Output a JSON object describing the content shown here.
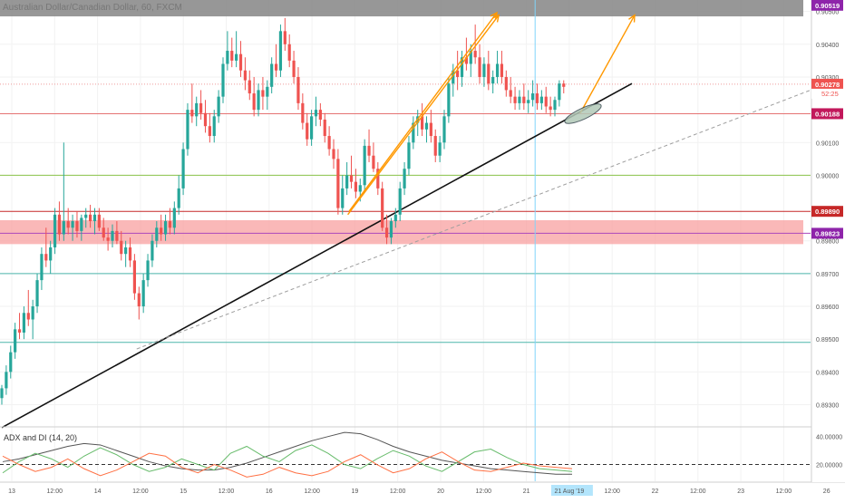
{
  "chart_title": "Australian Dollar/Canadian Dollar, 60, FXCM",
  "watermark": "",
  "colors": {
    "up": "#26a69a",
    "down": "#ef5350",
    "trend": "#111111",
    "orange": "#ff9800",
    "red_level": "#c62828",
    "green_level": "#8bc34a",
    "teal_level": "#4db6ac",
    "purple_level": "#9c27b0",
    "zone": "#f8a0a0",
    "band": "#9e9e9e",
    "adx": "#555555",
    "di_plus": "#66bb6a",
    "di_minus": "#ff7043"
  },
  "chart_data": [
    {
      "type": "candlestick",
      "title": "Australian Dollar/Canadian Dollar, 60, FXCM",
      "ylim": [
        0.89235,
        0.90535
      ],
      "y_ticks": [
        "0.89300",
        "0.89400",
        "0.89500",
        "0.89600",
        "0.89700",
        "0.89800",
        "0.90000",
        "0.90100",
        "0.90300",
        "0.90400",
        "0.90500"
      ],
      "price_labels": [
        {
          "value": 0.90519,
          "text": "0.90519",
          "color": "#8e24aa"
        },
        {
          "value": 0.90278,
          "text": "0.90278",
          "color": "#ef5350"
        },
        {
          "value": 0.90188,
          "text": "0.90188",
          "color": "#c2185b"
        },
        {
          "value": 0.8989,
          "text": "0.89890",
          "color": "#c62828"
        },
        {
          "value": 0.89823,
          "text": "0.89823",
          "color": "#8e24aa"
        }
      ],
      "countdown": "52:25",
      "horizontal_levels": [
        {
          "value": 0.90188,
          "color": "#e57373"
        },
        {
          "value": 0.9,
          "color": "#8bc34a"
        },
        {
          "value": 0.8989,
          "color": "#c62828"
        },
        {
          "value": 0.89823,
          "color": "#ab47bc"
        },
        {
          "value": 0.897,
          "color": "#4db6ac"
        },
        {
          "value": 0.8949,
          "color": "#4db6ac"
        }
      ],
      "zones": [
        {
          "top": 0.90535,
          "bottom": 0.90485,
          "color": "#8c8c8c"
        },
        {
          "top": 0.89863,
          "bottom": 0.8979,
          "color": "#f8a0a0"
        }
      ],
      "x_labels": [
        "13",
        "12:00",
        "14",
        "12:00",
        "15",
        "12:00",
        "16",
        "12:00",
        "19",
        "12:00",
        "20",
        "12:00",
        "21",
        "21 Aug '19",
        "12:00",
        "22",
        "12:00",
        "23",
        "12:00",
        "26"
      ],
      "highlight_x_label": "21 Aug '19",
      "candles": [
        [
          0.8932,
          0.8936,
          0.893,
          0.8935
        ],
        [
          0.8935,
          0.8942,
          0.8933,
          0.894
        ],
        [
          0.894,
          0.8948,
          0.8938,
          0.8946
        ],
        [
          0.8946,
          0.8955,
          0.8944,
          0.8953
        ],
        [
          0.8953,
          0.8958,
          0.895,
          0.8952
        ],
        [
          0.8952,
          0.896,
          0.895,
          0.8958
        ],
        [
          0.8958,
          0.8965,
          0.8954,
          0.8956
        ],
        [
          0.8956,
          0.8962,
          0.895,
          0.896
        ],
        [
          0.896,
          0.897,
          0.8958,
          0.8968
        ],
        [
          0.8968,
          0.8978,
          0.8965,
          0.8976
        ],
        [
          0.8976,
          0.8984,
          0.8972,
          0.8974
        ],
        [
          0.8974,
          0.898,
          0.897,
          0.8978
        ],
        [
          0.8978,
          0.899,
          0.8976,
          0.8988
        ],
        [
          0.8988,
          0.8992,
          0.898,
          0.8982
        ],
        [
          0.8982,
          0.901,
          0.898,
          0.8986
        ],
        [
          0.8986,
          0.899,
          0.8982,
          0.8984
        ],
        [
          0.8984,
          0.8988,
          0.898,
          0.8986
        ],
        [
          0.8986,
          0.8989,
          0.8981,
          0.8983
        ],
        [
          0.8983,
          0.8988,
          0.898,
          0.8987
        ],
        [
          0.8987,
          0.899,
          0.8984,
          0.8988
        ],
        [
          0.8988,
          0.8991,
          0.8984,
          0.8986
        ],
        [
          0.8986,
          0.899,
          0.8982,
          0.8988
        ],
        [
          0.8988,
          0.899,
          0.8983,
          0.8984
        ],
        [
          0.8984,
          0.8987,
          0.898,
          0.8981
        ],
        [
          0.8981,
          0.8984,
          0.8977,
          0.898
        ],
        [
          0.898,
          0.8985,
          0.8978,
          0.8983
        ],
        [
          0.8983,
          0.8986,
          0.8979,
          0.898
        ],
        [
          0.898,
          0.8983,
          0.8974,
          0.8976
        ],
        [
          0.8976,
          0.898,
          0.8972,
          0.8978
        ],
        [
          0.8978,
          0.8981,
          0.8972,
          0.8974
        ],
        [
          0.8974,
          0.8976,
          0.8962,
          0.8964
        ],
        [
          0.8964,
          0.8966,
          0.8956,
          0.896
        ],
        [
          0.896,
          0.897,
          0.8958,
          0.8968
        ],
        [
          0.8968,
          0.8976,
          0.8966,
          0.8974
        ],
        [
          0.8974,
          0.8982,
          0.8972,
          0.898
        ],
        [
          0.898,
          0.8986,
          0.8978,
          0.8984
        ],
        [
          0.8984,
          0.8988,
          0.898,
          0.8982
        ],
        [
          0.8982,
          0.8988,
          0.898,
          0.8986
        ],
        [
          0.8986,
          0.899,
          0.8982,
          0.8984
        ],
        [
          0.8984,
          0.8992,
          0.8982,
          0.899
        ],
        [
          0.899,
          0.9,
          0.8988,
          0.8996
        ],
        [
          0.8996,
          0.901,
          0.8994,
          0.9008
        ],
        [
          0.9008,
          0.9022,
          0.9006,
          0.902
        ],
        [
          0.902,
          0.9028,
          0.9016,
          0.9018
        ],
        [
          0.9018,
          0.9024,
          0.9015,
          0.9022
        ],
        [
          0.9022,
          0.9026,
          0.9017,
          0.9019
        ],
        [
          0.9019,
          0.9023,
          0.9013,
          0.9015
        ],
        [
          0.9015,
          0.9019,
          0.901,
          0.9012
        ],
        [
          0.9012,
          0.902,
          0.901,
          0.9018
        ],
        [
          0.9018,
          0.9026,
          0.9016,
          0.9024
        ],
        [
          0.9024,
          0.9036,
          0.9022,
          0.9034
        ],
        [
          0.9034,
          0.9044,
          0.9032,
          0.9038
        ],
        [
          0.9038,
          0.9042,
          0.9033,
          0.9035
        ],
        [
          0.9035,
          0.9044,
          0.9033,
          0.9037
        ],
        [
          0.9037,
          0.9041,
          0.903,
          0.9032
        ],
        [
          0.9032,
          0.9036,
          0.9026,
          0.9029
        ],
        [
          0.9029,
          0.9032,
          0.9023,
          0.9025
        ],
        [
          0.9025,
          0.903,
          0.9018,
          0.902
        ],
        [
          0.902,
          0.9028,
          0.9018,
          0.9026
        ],
        [
          0.9026,
          0.903,
          0.902,
          0.9024
        ],
        [
          0.9024,
          0.9029,
          0.902,
          0.9027
        ],
        [
          0.9027,
          0.9036,
          0.9025,
          0.9034
        ],
        [
          0.9034,
          0.904,
          0.903,
          0.9032
        ],
        [
          0.9032,
          0.9046,
          0.903,
          0.9044
        ],
        [
          0.9044,
          0.9048,
          0.9038,
          0.904
        ],
        [
          0.904,
          0.9043,
          0.9033,
          0.9035
        ],
        [
          0.9035,
          0.9038,
          0.9028,
          0.903
        ],
        [
          0.903,
          0.9033,
          0.902,
          0.9022
        ],
        [
          0.9022,
          0.9025,
          0.9014,
          0.9016
        ],
        [
          0.9016,
          0.9019,
          0.9009,
          0.9011
        ],
        [
          0.9011,
          0.902,
          0.9009,
          0.9018
        ],
        [
          0.9018,
          0.9024,
          0.9015,
          0.902
        ],
        [
          0.902,
          0.9022,
          0.9015,
          0.9017
        ],
        [
          0.9017,
          0.9019,
          0.901,
          0.9012
        ],
        [
          0.9012,
          0.9015,
          0.9006,
          0.9008
        ],
        [
          0.9008,
          0.9011,
          0.9002,
          0.9005
        ],
        [
          0.9005,
          0.9008,
          0.8988,
          0.899
        ],
        [
          0.899,
          0.9,
          0.8988,
          0.8996
        ],
        [
          0.8996,
          0.9004,
          0.8994,
          0.9
        ],
        [
          0.9,
          0.9006,
          0.8996,
          0.8998
        ],
        [
          0.8998,
          0.9002,
          0.8993,
          0.8995
        ],
        [
          0.8995,
          0.8999,
          0.8992,
          0.8997
        ],
        [
          0.8997,
          0.9011,
          0.8995,
          0.9009
        ],
        [
          0.9009,
          0.9014,
          0.9004,
          0.9006
        ],
        [
          0.9006,
          0.901,
          0.9001,
          0.9002
        ],
        [
          0.9002,
          0.9004,
          0.8994,
          0.8996
        ],
        [
          0.8996,
          0.8998,
          0.8983,
          0.8984
        ],
        [
          0.8984,
          0.8988,
          0.8979,
          0.8981
        ],
        [
          0.8981,
          0.8987,
          0.8979,
          0.8986
        ],
        [
          0.8986,
          0.899,
          0.8984,
          0.8988
        ],
        [
          0.8988,
          0.8998,
          0.8986,
          0.8996
        ],
        [
          0.8996,
          0.9004,
          0.8994,
          0.9002
        ],
        [
          0.9002,
          0.9012,
          0.9,
          0.901
        ],
        [
          0.901,
          0.9018,
          0.9008,
          0.9016
        ],
        [
          0.9016,
          0.902,
          0.9012,
          0.9018
        ],
        [
          0.9018,
          0.9022,
          0.9012,
          0.9014
        ],
        [
          0.9014,
          0.9018,
          0.901,
          0.9016
        ],
        [
          0.9016,
          0.902,
          0.901,
          0.9012
        ],
        [
          0.9012,
          0.9014,
          0.9004,
          0.9006
        ],
        [
          0.9006,
          0.9012,
          0.9004,
          0.901
        ],
        [
          0.901,
          0.902,
          0.9008,
          0.9018
        ],
        [
          0.9018,
          0.903,
          0.9016,
          0.9028
        ],
        [
          0.9028,
          0.9034,
          0.9024,
          0.9032
        ],
        [
          0.9032,
          0.9038,
          0.9026,
          0.903
        ],
        [
          0.903,
          0.9038,
          0.9027,
          0.9036
        ],
        [
          0.9036,
          0.9042,
          0.9032,
          0.9034
        ],
        [
          0.9034,
          0.904,
          0.903,
          0.9038
        ],
        [
          0.9038,
          0.9046,
          0.9034,
          0.9036
        ],
        [
          0.9036,
          0.904,
          0.9028,
          0.903
        ],
        [
          0.903,
          0.9036,
          0.9027,
          0.9034
        ],
        [
          0.9034,
          0.9038,
          0.9026,
          0.9028
        ],
        [
          0.9028,
          0.9032,
          0.9025,
          0.903
        ],
        [
          0.903,
          0.9038,
          0.9028,
          0.9034
        ],
        [
          0.9034,
          0.9038,
          0.9028,
          0.903
        ],
        [
          0.903,
          0.9032,
          0.9024,
          0.9026
        ],
        [
          0.9026,
          0.903,
          0.9022,
          0.9024
        ],
        [
          0.9024,
          0.9027,
          0.902,
          0.9022
        ],
        [
          0.9022,
          0.9026,
          0.902,
          0.9024
        ],
        [
          0.9024,
          0.9028,
          0.902,
          0.9022
        ],
        [
          0.9022,
          0.9026,
          0.9019,
          0.9023
        ],
        [
          0.9023,
          0.9029,
          0.9021,
          0.9025
        ],
        [
          0.9025,
          0.9028,
          0.902,
          0.9022
        ],
        [
          0.9022,
          0.9026,
          0.902,
          0.9024
        ],
        [
          0.9024,
          0.9027,
          0.9019,
          0.9021
        ],
        [
          0.9021,
          0.9024,
          0.9018,
          0.902
        ],
        [
          0.902,
          0.9024,
          0.9018,
          0.9023
        ],
        [
          0.9023,
          0.9029,
          0.9021,
          0.9028
        ],
        [
          0.9028,
          0.9029,
          0.9025,
          0.9027
        ]
      ],
      "drawings": {
        "black_trendline": [
          [
            0,
            0.8923
          ],
          [
            125,
            0.9028
          ]
        ],
        "dashed_trendline": [
          [
            27,
            0.8947
          ],
          [
            186,
            0.9026
          ]
        ],
        "orange_arrows": [
          [
            [
              70,
              0.8988
            ],
            [
              99,
              0.905
            ]
          ],
          [
            [
              95,
              0.902
            ],
            [
              99,
              0.905
            ]
          ],
          [
            [
              116,
              0.9019
            ],
            [
              126,
              0.905
            ]
          ]
        ],
        "ellipse_center": [
          115,
          0.90188
        ],
        "vertical_marker_index": 115
      }
    },
    {
      "type": "line",
      "title": "ADX and DI (14, 20)",
      "ylim": [
        8,
        45
      ],
      "y_ticks": [
        "40.00000",
        "20.00000"
      ],
      "dashed_level": 20,
      "series": [
        {
          "name": "ADX",
          "values": [
            22,
            24,
            27,
            30,
            33,
            35,
            34,
            30,
            26,
            22,
            19,
            17,
            16,
            16,
            18,
            21,
            25,
            29,
            33,
            37,
            40,
            43,
            42,
            38,
            33,
            29,
            26,
            23,
            21,
            19,
            17,
            16,
            15,
            14,
            13,
            13
          ]
        },
        {
          "name": "+DI",
          "values": [
            14,
            22,
            28,
            24,
            18,
            26,
            32,
            27,
            20,
            15,
            18,
            24,
            20,
            16,
            28,
            33,
            26,
            22,
            30,
            34,
            28,
            20,
            17,
            24,
            30,
            26,
            19,
            15,
            22,
            29,
            31,
            25,
            20,
            17,
            16,
            15
          ]
        },
        {
          "name": "-DI",
          "values": [
            26,
            20,
            15,
            18,
            24,
            17,
            12,
            16,
            22,
            28,
            26,
            18,
            14,
            20,
            16,
            11,
            13,
            18,
            14,
            12,
            15,
            22,
            27,
            20,
            14,
            17,
            24,
            29,
            22,
            16,
            15,
            18,
            21,
            19,
            18,
            17
          ]
        }
      ]
    }
  ]
}
